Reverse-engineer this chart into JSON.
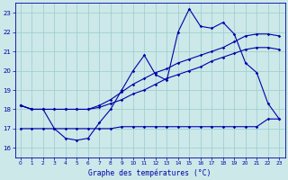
{
  "title": "Graphe des températures (°C)",
  "xlim": [
    -0.5,
    23.5
  ],
  "ylim": [
    15.5,
    23.5
  ],
  "yticks": [
    16,
    17,
    18,
    19,
    20,
    21,
    22,
    23
  ],
  "xticks": [
    0,
    1,
    2,
    3,
    4,
    5,
    6,
    7,
    8,
    9,
    10,
    11,
    12,
    13,
    14,
    15,
    16,
    17,
    18,
    19,
    20,
    21,
    22,
    23
  ],
  "bg_color": "#cce8e8",
  "grid_color": "#99cccc",
  "line_color": "#0000aa",
  "line1_x": [
    0,
    1,
    2,
    3,
    4,
    5,
    6,
    7,
    8,
    9,
    10,
    11,
    12,
    13,
    14,
    15,
    16,
    17,
    18,
    19,
    20,
    21,
    22,
    23
  ],
  "line1_y": [
    18.2,
    18.0,
    18.0,
    17.0,
    16.5,
    16.4,
    16.5,
    17.3,
    18.0,
    19.0,
    20.0,
    20.8,
    19.8,
    19.5,
    22.0,
    23.2,
    22.3,
    22.2,
    22.5,
    21.9,
    20.4,
    19.9,
    18.3,
    17.5
  ],
  "line2_x": [
    0,
    1,
    2,
    3,
    4,
    5,
    6,
    7,
    8,
    9,
    10,
    11,
    12,
    13,
    14,
    15,
    16,
    17,
    18,
    19,
    20,
    21,
    22,
    23
  ],
  "line2_y": [
    18.2,
    18.0,
    18.0,
    18.0,
    18.0,
    18.0,
    18.0,
    18.2,
    18.5,
    18.9,
    19.3,
    19.6,
    19.9,
    20.1,
    20.4,
    20.6,
    20.8,
    21.0,
    21.2,
    21.5,
    21.8,
    21.9,
    21.9,
    21.8
  ],
  "line3_x": [
    0,
    1,
    2,
    3,
    4,
    5,
    6,
    7,
    8,
    9,
    10,
    11,
    12,
    13,
    14,
    15,
    16,
    17,
    18,
    19,
    20,
    21,
    22,
    23
  ],
  "line3_y": [
    18.2,
    18.0,
    18.0,
    18.0,
    18.0,
    18.0,
    18.0,
    18.1,
    18.3,
    18.5,
    18.8,
    19.0,
    19.3,
    19.6,
    19.8,
    20.0,
    20.2,
    20.5,
    20.7,
    20.9,
    21.1,
    21.2,
    21.2,
    21.1
  ],
  "line4_x": [
    0,
    1,
    2,
    3,
    4,
    5,
    6,
    7,
    8,
    9,
    10,
    11,
    12,
    13,
    14,
    15,
    16,
    17,
    18,
    19,
    20,
    21,
    22,
    23
  ],
  "line4_y": [
    17.0,
    17.0,
    17.0,
    17.0,
    17.0,
    17.0,
    17.0,
    17.0,
    17.0,
    17.1,
    17.1,
    17.1,
    17.1,
    17.1,
    17.1,
    17.1,
    17.1,
    17.1,
    17.1,
    17.1,
    17.1,
    17.1,
    17.5,
    17.5
  ],
  "markersize": 1.8,
  "linewidth": 0.8
}
